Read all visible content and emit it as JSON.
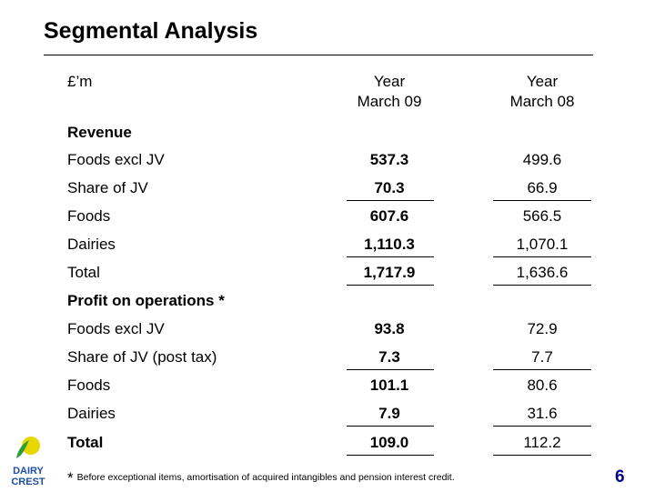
{
  "title": "Segmental Analysis",
  "unit": "£’m",
  "col1": {
    "line1": "Year",
    "line2": "March 09"
  },
  "col2": {
    "line1": "Year",
    "line2": "March 08"
  },
  "revenue": {
    "heading": "Revenue",
    "rows": [
      {
        "label": "Foods excl JV",
        "v09": "537.3",
        "v08": "499.6"
      },
      {
        "label": "Share of JV",
        "v09": "70.3",
        "v08": "66.9"
      },
      {
        "label": "Foods",
        "v09": "607.6",
        "v08": "566.5"
      },
      {
        "label": "Dairies",
        "v09": "1,110.3",
        "v08": "1,070.1"
      },
      {
        "label": "Total",
        "v09": "1,717.9",
        "v08": "1,636.6"
      }
    ]
  },
  "profit": {
    "heading": "Profit on operations *",
    "rows": [
      {
        "label": "Foods excl JV",
        "v09": "93.8",
        "v08": "72.9"
      },
      {
        "label": "Share of JV (post tax)",
        "v09": "7.3",
        "v08": "7.7"
      },
      {
        "label": "Foods",
        "v09": "101.1",
        "v08": "80.6"
      },
      {
        "label": "Dairies",
        "v09": "7.9",
        "v08": "31.6"
      },
      {
        "label": "Total",
        "v09": "109.0",
        "v08": "112.2"
      }
    ]
  },
  "footnote": {
    "star": "*",
    "text": "Before exceptional items, amortisation of acquired intangibles and pension interest credit."
  },
  "logo_text": {
    "line1": "DAIRY",
    "line2": "CREST"
  },
  "page_number": "6",
  "colors": {
    "page_number": "#00008b",
    "logo_sun": "#e9d600",
    "logo_leaf": "#2e9e3a",
    "logo_text": "#1f4fa6"
  }
}
